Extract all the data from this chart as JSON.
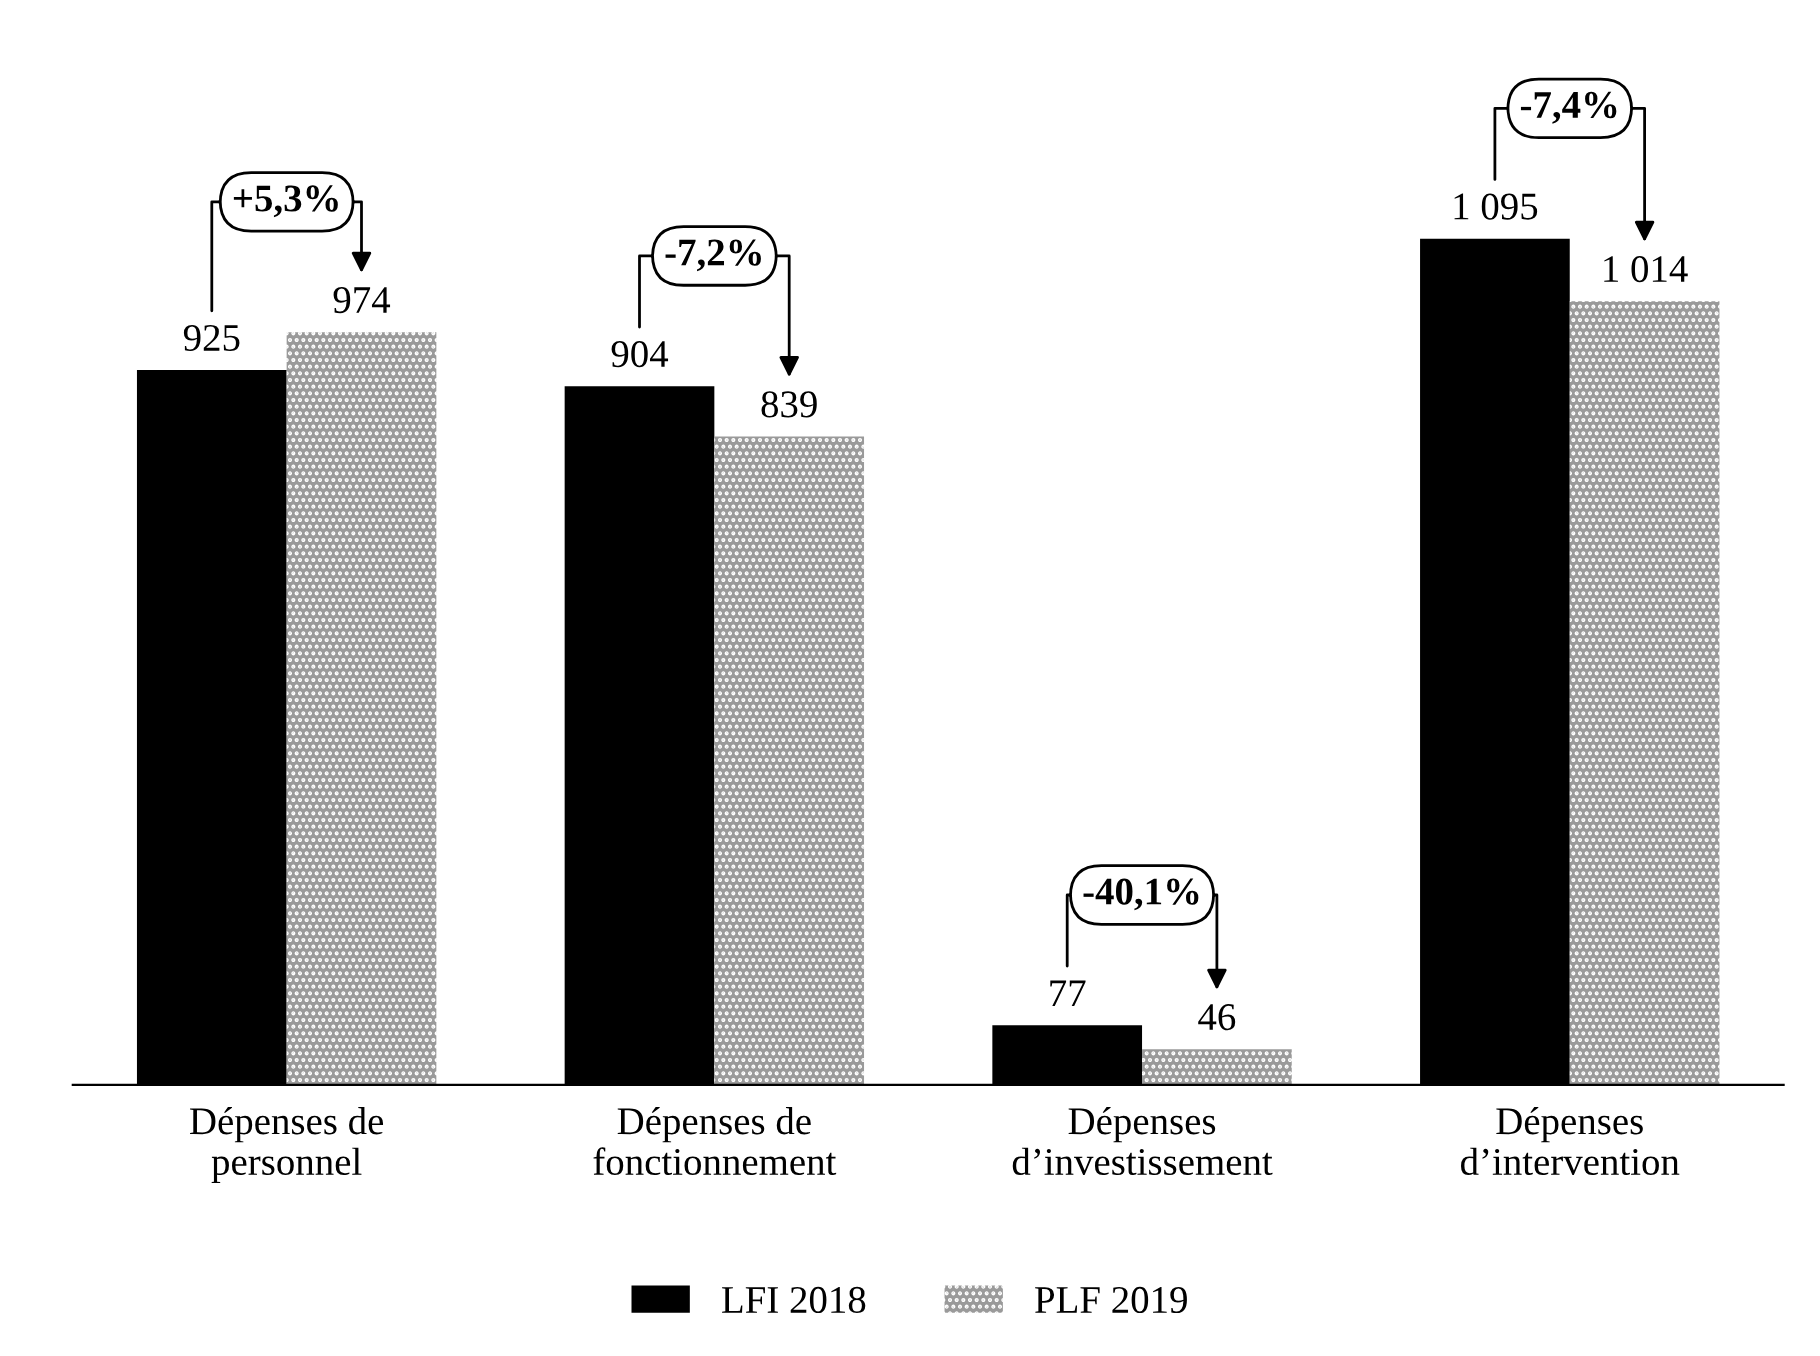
{
  "chart_data": {
    "type": "bar",
    "categories": [
      "Dépenses de\npersonnel",
      "Dépenses de\nfonctionnement",
      "Dépenses\nd’investissement",
      "Dépenses\nd’intervention"
    ],
    "series": [
      {
        "name": "LFI 2018",
        "color": "#000000",
        "values": [
          925,
          904,
          77,
          1095
        ],
        "value_labels": [
          "925",
          "904",
          "77",
          "1 095"
        ]
      },
      {
        "name": "PLF 2019",
        "color": "#9a9a9a",
        "values": [
          974,
          839,
          46,
          1014
        ],
        "value_labels": [
          "974",
          "839",
          "46",
          "1 014"
        ]
      }
    ],
    "annotations": [
      "+5,3%",
      "-7,2%",
      "-40,1%",
      "-7,4%"
    ],
    "legend": "bottom",
    "grid": false
  }
}
